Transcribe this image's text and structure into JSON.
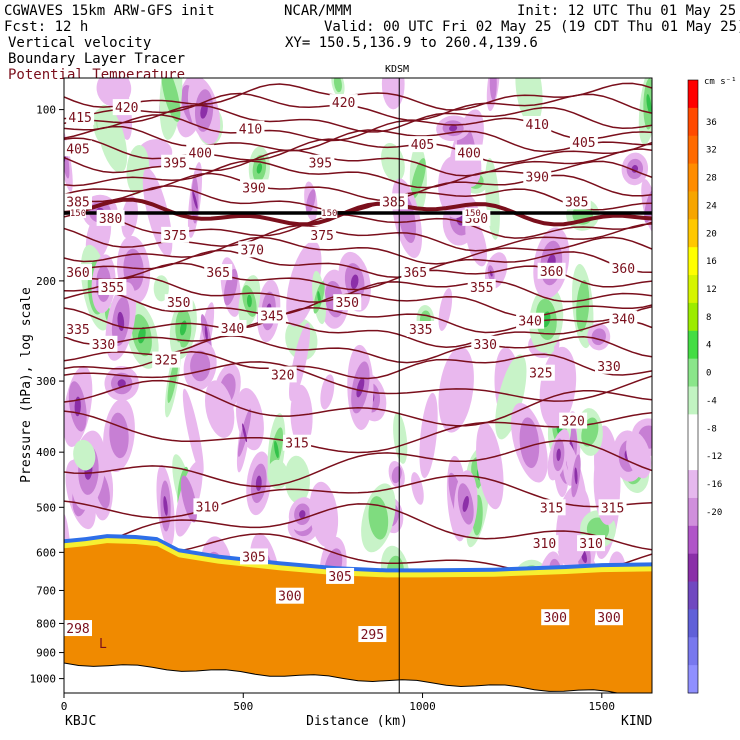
{
  "header": {
    "title_left": "CGWAVES 15km ARW-GFS init",
    "fcst": "Fcst:   12 h",
    "field1": "Vertical velocity",
    "field2": "Boundary Layer Tracer",
    "field3": "Potential Temperature",
    "center": "NCAR/MMM",
    "init": "Init: 12 UTC Thu 01 May 25",
    "valid": "Valid: 00 UTC Fri 02 May 25 (19 CDT Thu 01 May 25)",
    "xy": "XY= 150.5,136.9 to 260.4,139.6",
    "station_mid": "KDSM",
    "station_left": "KBJC",
    "station_right": "KIND",
    "low_marker": "L"
  },
  "colors": {
    "theta": "#7a0f1c",
    "ground": "#f08a00",
    "tracer_edge": "#2e6fe8",
    "up_light": "#c8f3c8",
    "up_mid": "#7fdc7f",
    "down_light": "#e9b8ee",
    "down_mid": "#c77fd4",
    "down_dark": "#8c2fa8"
  },
  "chart_data": {
    "type": "cross-section",
    "xlabel": "Distance (km)",
    "ylabel": "Pressure (hPa), log scale",
    "xlim": [
      0,
      1640
    ],
    "ylim": [
      1000,
      100
    ],
    "y_scale": "log",
    "x_ticks": [
      0,
      500,
      1000,
      1500
    ],
    "y_ticks": [
      100,
      200,
      300,
      400,
      500,
      600,
      700,
      800,
      900,
      1000
    ],
    "vertical_line_km": 935,
    "colorbar": {
      "unit": "cm s⁻¹",
      "levels": [
        36,
        32,
        28,
        24,
        20,
        16,
        12,
        8,
        4,
        0,
        -4,
        -8,
        -12,
        -16,
        -20
      ],
      "colors": [
        "#ff0000",
        "#ff4a00",
        "#ff6a00",
        "#ff8c00",
        "#f7a500",
        "#ffc800",
        "#ffff00",
        "#d6f500",
        "#9cec00",
        "#44dd44",
        "#8ae68a",
        "#c2f4c2",
        "#ffffff",
        "#ffffff",
        "#e6b8ee",
        "#d08fdc",
        "#b055c8",
        "#8a2fa8",
        "#7048c0",
        "#6060d8",
        "#7878ee",
        "#9090ff"
      ]
    },
    "isentrope_labels": [
      {
        "v": "420",
        "x": 175,
        "p": 99
      },
      {
        "v": "415",
        "x": 45,
        "p": 103
      },
      {
        "v": "405",
        "x": -20,
        "p": 117
      },
      {
        "v": "395",
        "x": 310,
        "p": 124
      },
      {
        "v": "400",
        "x": 380,
        "p": 119
      },
      {
        "v": "410",
        "x": 520,
        "p": 108
      },
      {
        "v": "390",
        "x": 530,
        "p": 137
      },
      {
        "v": "395",
        "x": 715,
        "p": 124
      },
      {
        "v": "420",
        "x": 780,
        "p": 97
      },
      {
        "v": "405",
        "x": 1000,
        "p": 115
      },
      {
        "v": "400",
        "x": 1130,
        "p": 119
      },
      {
        "v": "410",
        "x": 1320,
        "p": 106
      },
      {
        "v": "390",
        "x": 1320,
        "p": 131
      },
      {
        "v": "405",
        "x": 1450,
        "p": 114
      },
      {
        "v": "385",
        "x": -25,
        "p": 145
      },
      {
        "v": "380",
        "x": 130,
        "p": 155
      },
      {
        "v": "375",
        "x": 310,
        "p": 166
      },
      {
        "v": "370",
        "x": 525,
        "p": 176
      },
      {
        "v": "375",
        "x": 720,
        "p": 166
      },
      {
        "v": "385",
        "x": 920,
        "p": 145
      },
      {
        "v": "380",
        "x": 1150,
        "p": 155
      },
      {
        "v": "385",
        "x": 1430,
        "p": 145
      },
      {
        "v": "360",
        "x": -35,
        "p": 193
      },
      {
        "v": "355",
        "x": 135,
        "p": 205
      },
      {
        "v": "350",
        "x": 320,
        "p": 218
      },
      {
        "v": "365",
        "x": 430,
        "p": 193
      },
      {
        "v": "360",
        "x": 1360,
        "p": 192
      },
      {
        "v": "360",
        "x": 1560,
        "p": 190
      },
      {
        "v": "365",
        "x": 980,
        "p": 193
      },
      {
        "v": "350",
        "x": 790,
        "p": 218
      },
      {
        "v": "355",
        "x": 1165,
        "p": 205
      },
      {
        "v": "340",
        "x": 470,
        "p": 242
      },
      {
        "v": "345",
        "x": 580,
        "p": 230
      },
      {
        "v": "335",
        "x": -40,
        "p": 243
      },
      {
        "v": "330",
        "x": 110,
        "p": 258
      },
      {
        "v": "325",
        "x": 285,
        "p": 275
      },
      {
        "v": "320",
        "x": 610,
        "p": 292
      },
      {
        "v": "335",
        "x": 995,
        "p": 243
      },
      {
        "v": "330",
        "x": 1175,
        "p": 258
      },
      {
        "v": "340",
        "x": 1300,
        "p": 235
      },
      {
        "v": "340",
        "x": 1560,
        "p": 233
      },
      {
        "v": "325",
        "x": 1330,
        "p": 290
      },
      {
        "v": "330",
        "x": 1520,
        "p": 282
      },
      {
        "v": "320",
        "x": 1420,
        "p": 352
      },
      {
        "v": "315",
        "x": 650,
        "p": 385
      },
      {
        "v": "310",
        "x": 400,
        "p": 498
      },
      {
        "v": "305",
        "x": 530,
        "p": 610
      },
      {
        "v": "305",
        "x": 770,
        "p": 660
      },
      {
        "v": "300",
        "x": 630,
        "p": 715
      },
      {
        "v": "315",
        "x": 1360,
        "p": 500
      },
      {
        "v": "315",
        "x": 1530,
        "p": 500
      },
      {
        "v": "310",
        "x": 1340,
        "p": 578
      },
      {
        "v": "310",
        "x": 1470,
        "p": 578
      },
      {
        "v": "300",
        "x": 1370,
        "p": 780
      },
      {
        "v": "300",
        "x": 1520,
        "p": 780
      },
      {
        "v": "295",
        "x": 860,
        "p": 835
      },
      {
        "v": "298",
        "x": 35,
        "p": 815
      },
      {
        "v": "150",
        "x": 20,
        "p": 152
      },
      {
        "v": "150",
        "x": 740,
        "p": 152
      },
      {
        "v": "150",
        "x": 1140,
        "p": 152
      }
    ],
    "isentrope_levels_hpa": [
      95,
      99,
      104,
      108,
      113,
      118,
      124,
      130,
      137,
      144,
      152,
      160,
      168,
      177,
      187,
      197,
      208,
      220,
      234,
      248,
      264,
      282,
      302,
      330,
      370,
      420,
      480,
      545,
      610,
      680,
      760
    ]
  }
}
